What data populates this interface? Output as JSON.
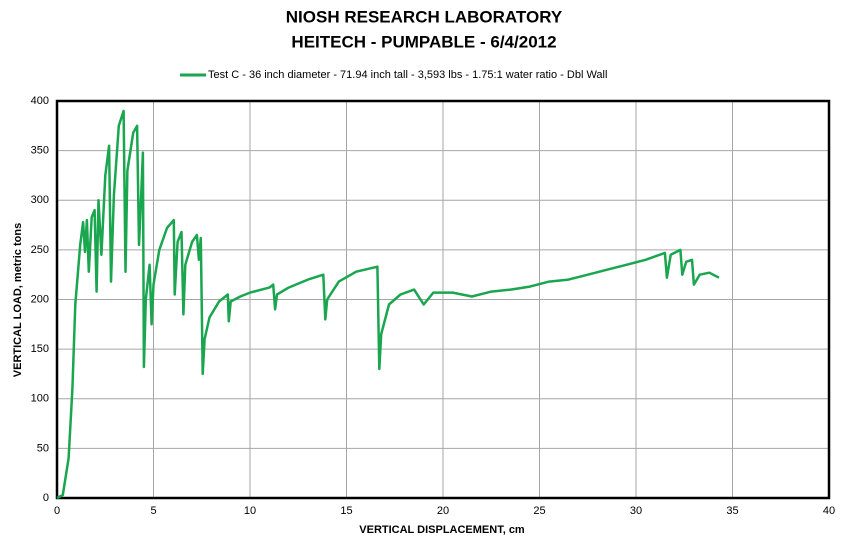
{
  "chart_data": {
    "type": "line",
    "title": [
      "NIOSH RESEARCH LABORATORY",
      "HEITECH - PUMPABLE - 6/4/2012"
    ],
    "x_label": "VERTICAL DISPLACEMENT, cm",
    "y_label": "VERTICAL LOAD, metric tons",
    "xlim": [
      0,
      40
    ],
    "xticks": [
      0,
      5,
      10,
      15,
      20,
      25,
      30,
      35,
      40
    ],
    "ylim": [
      0,
      400
    ],
    "yticks": [
      0,
      50,
      100,
      150,
      200,
      250,
      300,
      350,
      400
    ],
    "grid": true,
    "legend": "top",
    "series": [
      {
        "name": "Test C - 36 inch diameter - 71.94 inch tall - 3,593 lbs - 1.75:1 water ratio - Dbl Wall",
        "color": "#1aa64f",
        "x": [
          0,
          0.3,
          0.6,
          0.8,
          0.95,
          1.2,
          1.35,
          1.45,
          1.55,
          1.65,
          1.8,
          1.95,
          2.05,
          2.15,
          2.3,
          2.5,
          2.7,
          2.8,
          2.95,
          3.2,
          3.45,
          3.55,
          3.65,
          3.95,
          4.15,
          4.25,
          4.35,
          4.45,
          4.5,
          4.6,
          4.8,
          4.9,
          5.0,
          5.3,
          5.7,
          6.05,
          6.1,
          6.25,
          6.45,
          6.55,
          6.65,
          7.0,
          7.25,
          7.35,
          7.45,
          7.55,
          7.65,
          7.9,
          8.4,
          8.85,
          8.9,
          9.0,
          9.5,
          10,
          11,
          11.2,
          11.3,
          11.4,
          12,
          13,
          13.8,
          13.9,
          14.0,
          14.6,
          15.5,
          16.6,
          16.7,
          16.8,
          17.2,
          17.8,
          18.5,
          19.0,
          19.5,
          20.5,
          21.5,
          22.5,
          23.5,
          24.5,
          25.5,
          26.5,
          27.5,
          28.5,
          29.5,
          30.5,
          31.5,
          31.6,
          31.8,
          32.3,
          32.4,
          32.6,
          32.9,
          33.0,
          33.3,
          33.8,
          34.3
        ],
        "values": [
          0,
          3,
          40,
          110,
          195,
          255,
          278,
          248,
          280,
          228,
          283,
          290,
          208,
          300,
          245,
          325,
          355,
          218,
          305,
          375,
          390,
          228,
          330,
          368,
          375,
          255,
          300,
          348,
          132,
          200,
          235,
          175,
          215,
          250,
          272,
          280,
          205,
          258,
          268,
          185,
          235,
          258,
          265,
          240,
          262,
          125,
          160,
          182,
          198,
          205,
          178,
          198,
          203,
          207,
          212,
          215,
          190,
          205,
          212,
          220,
          225,
          180,
          200,
          218,
          228,
          233,
          130,
          165,
          195,
          205,
          210,
          195,
          207,
          207,
          203,
          208,
          210,
          213,
          218,
          220,
          225,
          230,
          235,
          240,
          247,
          222,
          245,
          250,
          225,
          238,
          240,
          215,
          225,
          227,
          222
        ]
      }
    ]
  }
}
